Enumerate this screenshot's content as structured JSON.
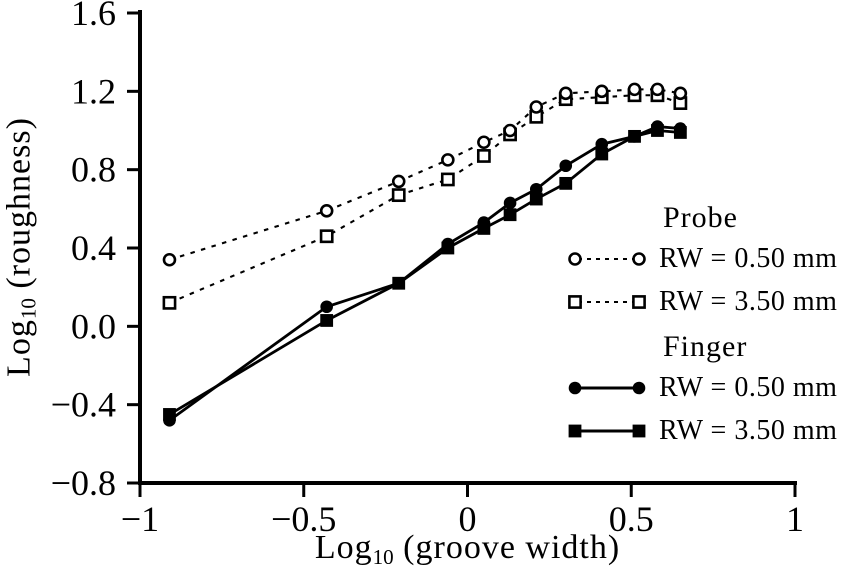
{
  "chart_data": {
    "type": "line",
    "title": "",
    "xlabel": "Log10 (groove width)",
    "xlabel_parts": [
      "Log",
      "10",
      " (groove width)"
    ],
    "ylabel": "Log10 (roughness)",
    "ylabel_parts": [
      "Log",
      "10",
      " (roughness)"
    ],
    "xlim": [
      -1,
      1
    ],
    "ylim": [
      -0.8,
      1.6
    ],
    "grid": false,
    "x_ticks": [
      -1,
      -0.5,
      0,
      0.5,
      1
    ],
    "x_tick_labels": [
      "−1",
      "−0.5",
      "0",
      "0.5",
      "1"
    ],
    "y_ticks": [
      1.6,
      1.2,
      0.8,
      0.4,
      0.0,
      -0.4,
      -0.8
    ],
    "y_tick_labels": [
      "1.6",
      "1.2",
      "0.8",
      "0.4",
      "0.0",
      "−0.4",
      "−0.8"
    ],
    "x": [
      -0.91,
      -0.43,
      -0.21,
      -0.06,
      0.05,
      0.13,
      0.21,
      0.3,
      0.41,
      0.51,
      0.58,
      0.65
    ],
    "series": [
      {
        "name": "Probe RW = 0.50 mm",
        "group": "Probe",
        "label": "RW = 0.50 mm",
        "marker": "circle-open",
        "line": "dashed",
        "values": [
          0.34,
          0.59,
          0.74,
          0.85,
          0.94,
          1.0,
          1.12,
          1.19,
          1.2,
          1.21,
          1.21,
          1.19
        ]
      },
      {
        "name": "Probe RW = 3.50 mm",
        "group": "Probe",
        "label": "RW = 3.50 mm",
        "marker": "square-open",
        "line": "dashed",
        "values": [
          0.12,
          0.46,
          0.67,
          0.75,
          0.87,
          0.98,
          1.07,
          1.16,
          1.17,
          1.18,
          1.18,
          1.14
        ]
      },
      {
        "name": "Finger RW = 0.50 mm",
        "group": "Finger",
        "label": "RW = 0.50 mm",
        "marker": "circle-filled",
        "line": "solid",
        "values": [
          -0.48,
          0.1,
          0.22,
          0.42,
          0.53,
          0.63,
          0.7,
          0.82,
          0.93,
          0.97,
          1.02,
          1.01
        ]
      },
      {
        "name": "Finger RW = 3.50 mm",
        "group": "Finger",
        "label": "RW = 3.50 mm",
        "marker": "square-filled",
        "line": "solid",
        "values": [
          -0.45,
          0.03,
          0.22,
          0.4,
          0.5,
          0.57,
          0.65,
          0.73,
          0.88,
          0.97,
          1.0,
          0.99
        ]
      }
    ],
    "legend": {
      "position": "right",
      "groups": [
        {
          "title": "Probe",
          "series": [
            0,
            1
          ]
        },
        {
          "title": "Finger",
          "series": [
            2,
            3
          ]
        }
      ]
    },
    "colors": {
      "ink": "#000000",
      "background": "#ffffff"
    }
  }
}
